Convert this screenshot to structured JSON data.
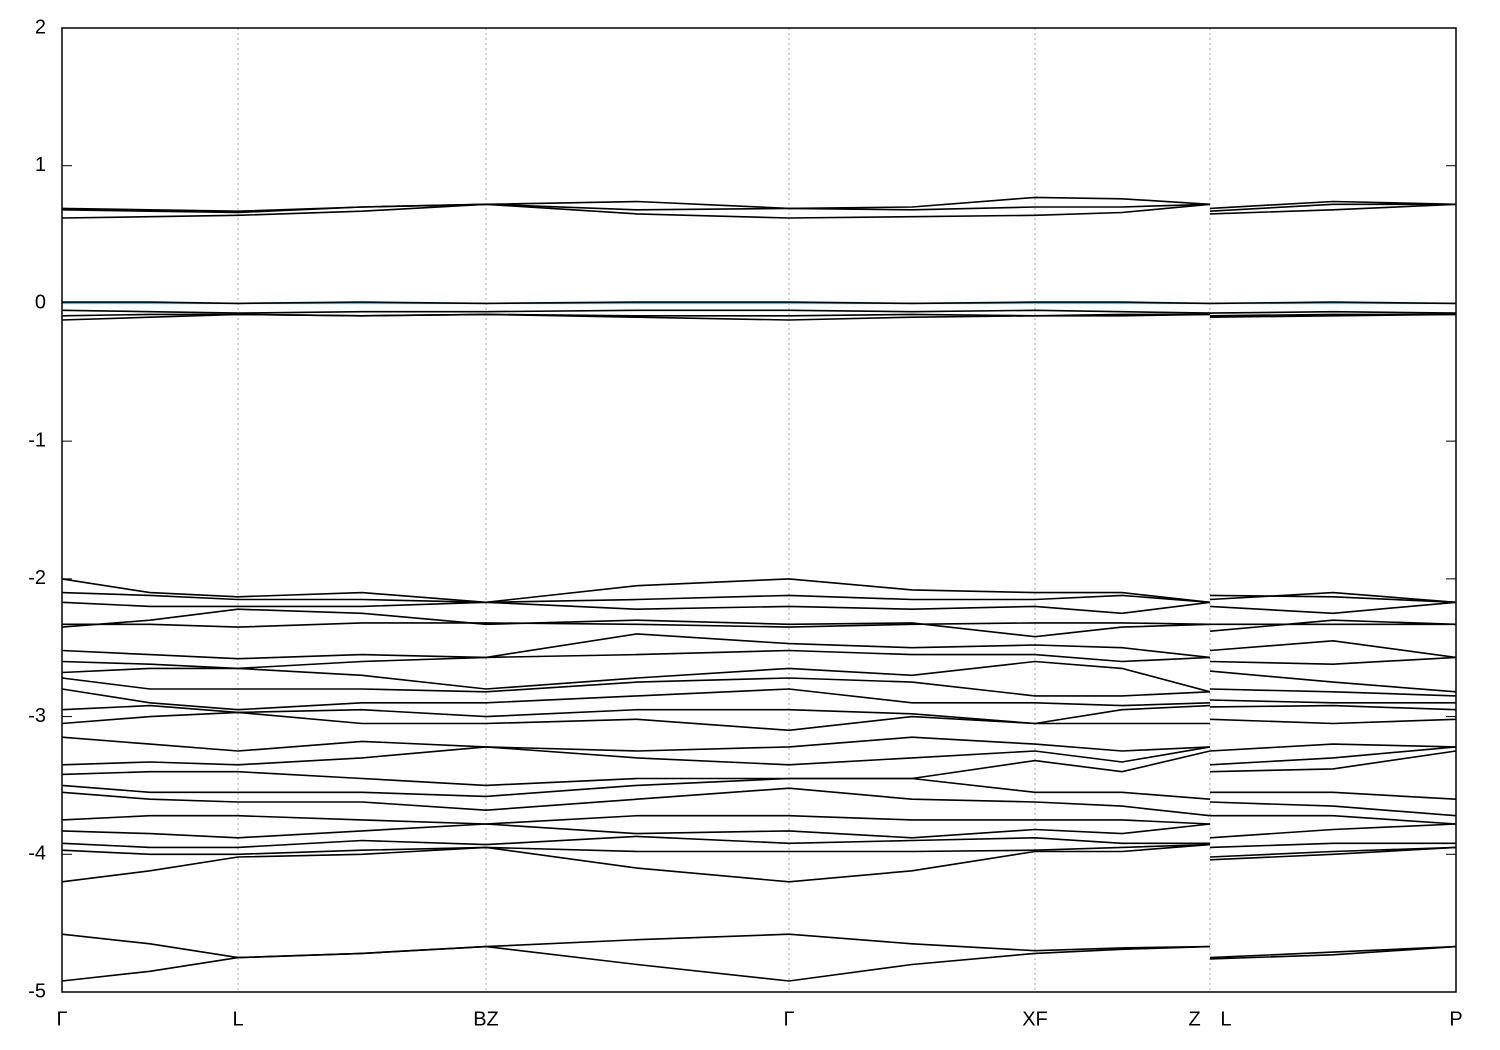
{
  "chart_data": {
    "type": "line",
    "color": "#000000",
    "fermi_level": 0,
    "fermi_color": "#5fb3c8",
    "grid": true,
    "xlim": [
      0,
      1394
    ],
    "ylim": [
      -5,
      2
    ],
    "yticks": [
      -5,
      -4,
      -3,
      -2,
      -1,
      0,
      1,
      2
    ],
    "xticks": [
      {
        "value": 0,
        "label": "Γ"
      },
      {
        "value": 176,
        "label": "L"
      },
      {
        "value": 424,
        "label": "BZ"
      },
      {
        "value": 727,
        "label": "Γ"
      },
      {
        "value": 973,
        "label": "XF"
      },
      {
        "value": 1148,
        "label": "Z L"
      },
      {
        "value": 1394,
        "label": "P"
      }
    ],
    "x": [
      0,
      88,
      176,
      300,
      424,
      575,
      727,
      850,
      973,
      1060,
      1148,
      1148,
      1148,
      1271,
      1394
    ],
    "series": [
      {
        "values": [
          0.69,
          0.68,
          0.67,
          0.7,
          0.72,
          0.74,
          0.69,
          0.7,
          0.77,
          0.76,
          0.72,
          null,
          0.69,
          0.74,
          0.72
        ]
      },
      {
        "values": [
          0.62,
          0.63,
          0.64,
          0.67,
          0.72,
          0.65,
          0.62,
          0.63,
          0.64,
          0.66,
          0.72,
          null,
          0.65,
          0.68,
          0.72
        ]
      },
      {
        "values": [
          0.68,
          0.67,
          0.66,
          0.7,
          0.72,
          0.68,
          0.69,
          0.68,
          0.7,
          0.7,
          0.72,
          null,
          0.67,
          0.72,
          0.72
        ]
      },
      {
        "values": [
          0.01,
          0.01,
          0.0,
          0.01,
          0.0,
          0.01,
          0.01,
          0.0,
          0.01,
          0.01,
          0.0,
          null,
          0.0,
          0.01,
          0.0
        ]
      },
      {
        "values": [
          -0.05,
          -0.06,
          -0.07,
          -0.06,
          -0.06,
          -0.05,
          -0.05,
          -0.06,
          -0.05,
          -0.06,
          -0.07,
          null,
          -0.07,
          -0.06,
          -0.07
        ]
      },
      {
        "values": [
          -0.09,
          -0.08,
          -0.08,
          -0.09,
          -0.08,
          -0.09,
          -0.09,
          -0.08,
          -0.09,
          -0.08,
          -0.08,
          null,
          -0.09,
          -0.08,
          -0.08
        ]
      },
      {
        "values": [
          -0.12,
          -0.1,
          -0.08,
          -0.09,
          -0.08,
          -0.1,
          -0.12,
          -0.1,
          -0.09,
          -0.09,
          -0.08,
          null,
          -0.1,
          -0.09,
          -0.08
        ]
      },
      {
        "values": [
          -2.0,
          -2.1,
          -2.13,
          -2.1,
          -2.17,
          -2.05,
          -2.0,
          -2.08,
          -2.1,
          -2.1,
          -2.17,
          null,
          -2.15,
          -2.1,
          -2.17
        ]
      },
      {
        "values": [
          -2.1,
          -2.12,
          -2.15,
          -2.15,
          -2.17,
          -2.15,
          -2.12,
          -2.15,
          -2.15,
          -2.12,
          -2.17,
          null,
          -2.12,
          -2.13,
          -2.17
        ]
      },
      {
        "values": [
          -2.17,
          -2.2,
          -2.2,
          -2.2,
          -2.17,
          -2.22,
          -2.2,
          -2.22,
          -2.2,
          -2.25,
          -2.17,
          null,
          -2.2,
          -2.25,
          -2.17
        ]
      },
      {
        "values": [
          -2.33,
          -2.33,
          -2.35,
          -2.32,
          -2.32,
          -2.33,
          -2.35,
          -2.33,
          -2.32,
          -2.32,
          -2.33,
          null,
          -2.33,
          -2.33,
          -2.33
        ]
      },
      {
        "values": [
          -2.35,
          -2.3,
          -2.22,
          -2.25,
          -2.33,
          -2.3,
          -2.33,
          -2.32,
          -2.42,
          -2.35,
          -2.33,
          null,
          -2.38,
          -2.3,
          -2.33
        ]
      },
      {
        "values": [
          -2.52,
          -2.55,
          -2.58,
          -2.55,
          -2.57,
          -2.4,
          -2.47,
          -2.5,
          -2.48,
          -2.5,
          -2.57,
          null,
          -2.52,
          -2.45,
          -2.57
        ]
      },
      {
        "values": [
          -2.6,
          -2.62,
          -2.65,
          -2.6,
          -2.57,
          -2.55,
          -2.52,
          -2.55,
          -2.55,
          -2.6,
          -2.57,
          null,
          -2.6,
          -2.62,
          -2.57
        ]
      },
      {
        "values": [
          -2.68,
          -2.65,
          -2.65,
          -2.7,
          -2.8,
          -2.72,
          -2.65,
          -2.7,
          -2.6,
          -2.65,
          -2.82,
          null,
          -2.67,
          -2.75,
          -2.82
        ]
      },
      {
        "values": [
          -2.72,
          -2.8,
          -2.8,
          -2.8,
          -2.82,
          -2.75,
          -2.72,
          -2.75,
          -2.85,
          -2.85,
          -2.82,
          null,
          -2.8,
          -2.82,
          -2.85
        ]
      },
      {
        "values": [
          -2.8,
          -2.9,
          -2.95,
          -2.9,
          -2.9,
          -2.85,
          -2.8,
          -2.9,
          -2.9,
          -2.92,
          -2.9,
          null,
          -2.88,
          -2.9,
          -2.9
        ]
      },
      {
        "values": [
          -2.95,
          -2.92,
          -2.97,
          -2.95,
          -3.0,
          -2.95,
          -2.95,
          -2.98,
          -3.05,
          -2.95,
          -2.92,
          null,
          -2.93,
          -2.92,
          -2.95
        ]
      },
      {
        "values": [
          -3.05,
          -3.0,
          -2.97,
          -3.05,
          -3.05,
          -3.02,
          -3.1,
          -3.0,
          -3.05,
          -3.05,
          -3.05,
          null,
          -3.02,
          -3.05,
          -3.02
        ]
      },
      {
        "values": [
          -3.15,
          -3.2,
          -3.25,
          -3.18,
          -3.22,
          -3.25,
          -3.22,
          -3.15,
          -3.2,
          -3.25,
          -3.22,
          null,
          -3.25,
          -3.2,
          -3.22
        ]
      },
      {
        "values": [
          -3.35,
          -3.33,
          -3.35,
          -3.3,
          -3.22,
          -3.3,
          -3.35,
          -3.3,
          -3.25,
          -3.33,
          -3.22,
          null,
          -3.35,
          -3.3,
          -3.22
        ]
      },
      {
        "values": [
          -3.42,
          -3.4,
          -3.4,
          -3.45,
          -3.5,
          -3.45,
          -3.45,
          -3.45,
          -3.32,
          -3.4,
          -3.25,
          null,
          -3.4,
          -3.38,
          -3.25
        ]
      },
      {
        "values": [
          -3.5,
          -3.55,
          -3.55,
          -3.55,
          -3.58,
          -3.5,
          -3.45,
          -3.45,
          -3.55,
          -3.55,
          -3.6,
          null,
          -3.55,
          -3.55,
          -3.6
        ]
      },
      {
        "values": [
          -3.55,
          -3.6,
          -3.62,
          -3.62,
          -3.68,
          -3.6,
          -3.52,
          -3.6,
          -3.62,
          -3.65,
          -3.72,
          null,
          -3.62,
          -3.65,
          -3.72
        ]
      },
      {
        "values": [
          -3.75,
          -3.72,
          -3.72,
          -3.75,
          -3.78,
          -3.72,
          -3.72,
          -3.75,
          -3.75,
          -3.75,
          -3.78,
          null,
          -3.72,
          -3.72,
          -3.78
        ]
      },
      {
        "values": [
          -3.83,
          -3.85,
          -3.88,
          -3.83,
          -3.78,
          -3.85,
          -3.83,
          -3.88,
          -3.82,
          -3.85,
          -3.78,
          null,
          -3.88,
          -3.82,
          -3.78
        ]
      },
      {
        "values": [
          -3.92,
          -3.95,
          -3.95,
          -3.9,
          -3.93,
          -3.87,
          -3.92,
          -3.9,
          -3.88,
          -3.92,
          -3.92,
          null,
          -3.95,
          -3.92,
          -3.92
        ]
      },
      {
        "values": [
          -3.97,
          -4.0,
          -4.0,
          -3.97,
          -3.95,
          -3.98,
          -3.98,
          -3.98,
          -3.97,
          -3.95,
          -3.93,
          null,
          -4.02,
          -3.98,
          -3.95
        ]
      },
      {
        "values": [
          -4.2,
          -4.12,
          -4.02,
          -4.0,
          -3.95,
          -4.1,
          -4.2,
          -4.12,
          -3.98,
          -3.98,
          -3.93,
          null,
          -4.04,
          -4.0,
          -3.95
        ]
      },
      {
        "values": [
          -4.58,
          -4.65,
          -4.75,
          -4.72,
          -4.67,
          -4.62,
          -4.58,
          -4.65,
          -4.7,
          -4.68,
          -4.67,
          null,
          -4.75,
          -4.71,
          -4.67
        ]
      },
      {
        "values": [
          -4.92,
          -4.85,
          -4.75,
          -4.72,
          -4.67,
          -4.8,
          -4.92,
          -4.8,
          -4.72,
          -4.69,
          -4.67,
          null,
          -4.76,
          -4.73,
          -4.67
        ]
      }
    ]
  }
}
